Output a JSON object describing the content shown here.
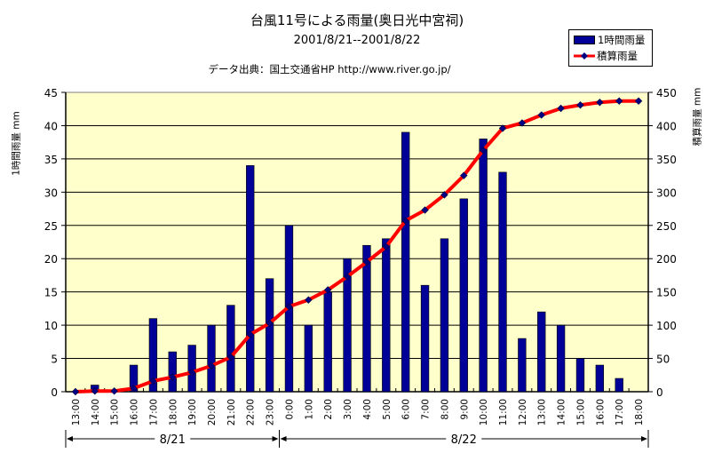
{
  "chart_data": {
    "type": "bar+line",
    "title": "台風11号による雨量(奥日光中宮祠)",
    "subtitle": "2001/8/21--2001/8/22",
    "source": "データ出典：国土交通省HP  http://www.river.go.jp/",
    "categories": [
      "13:00",
      "14:00",
      "15:00",
      "16:00",
      "17:00",
      "18:00",
      "19:00",
      "20:00",
      "21:00",
      "22:00",
      "23:00",
      "0:00",
      "1:00",
      "2:00",
      "3:00",
      "4:00",
      "5:00",
      "6:00",
      "7:00",
      "8:00",
      "9:00",
      "10:00",
      "11:00",
      "12:00",
      "13:00",
      "14:00",
      "15:00",
      "16:00",
      "17:00",
      "18:00"
    ],
    "series": [
      {
        "name": "1時間雨量",
        "type": "bar",
        "axis": "left",
        "color": "#000099",
        "values": [
          0,
          1,
          0,
          4,
          11,
          6,
          7,
          10,
          13,
          34,
          17,
          25,
          10,
          15,
          20,
          22,
          23,
          39,
          16,
          23,
          29,
          38,
          33,
          8,
          12,
          10,
          5,
          4,
          2,
          0
        ]
      },
      {
        "name": "積算雨量",
        "type": "line",
        "axis": "right",
        "color": "#ff0000",
        "marker_color": "#000080",
        "values": [
          0,
          1,
          1,
          5,
          16,
          22,
          29,
          39,
          52,
          86,
          103,
          128,
          138,
          153,
          173,
          195,
          218,
          257,
          273,
          296,
          325,
          363,
          396,
          404,
          416,
          426,
          431,
          435,
          437,
          437
        ]
      }
    ],
    "ylabel_left": "1時間雨量 mm",
    "ylabel_right": "積算雨量 mm",
    "ylim_left": [
      0,
      45
    ],
    "ylim_right": [
      0,
      450
    ],
    "yticks_left": [
      "0",
      "5",
      "10",
      "15",
      "20",
      "25",
      "30",
      "35",
      "40",
      "45"
    ],
    "yticks_right": [
      "0",
      "50",
      "100",
      "150",
      "200",
      "250",
      "300",
      "350",
      "400",
      "450"
    ],
    "date_groups": [
      {
        "label": "8/21",
        "from_index": 0,
        "to_index": 11
      },
      {
        "label": "8/22",
        "from_index": 11,
        "to_index": 30
      }
    ],
    "legend": {
      "position": "top-right",
      "entries": [
        "1時間雨量",
        "積算雨量"
      ]
    },
    "grid": true,
    "plot_background": "#ffffcc"
  }
}
